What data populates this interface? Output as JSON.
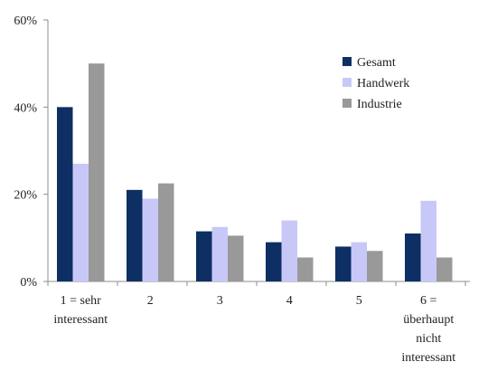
{
  "chart_data": {
    "type": "bar",
    "categories": [
      [
        "1 = sehr",
        "interessant"
      ],
      [
        "2"
      ],
      [
        "3"
      ],
      [
        "4"
      ],
      [
        "5"
      ],
      [
        "6 =",
        "überhaupt",
        "nicht",
        "interessant"
      ]
    ],
    "series": [
      {
        "name": "Gesamt",
        "color": "#0d2f63",
        "values": [
          40,
          21,
          11.5,
          9,
          8,
          11
        ]
      },
      {
        "name": "Handwerk",
        "color": "#c8c8f8",
        "values": [
          27,
          19,
          12.5,
          14,
          9,
          18.5
        ]
      },
      {
        "name": "Industrie",
        "color": "#999999",
        "values": [
          50,
          22.5,
          10.5,
          5.5,
          7,
          5.5
        ]
      }
    ],
    "y_ticks": [
      "0%",
      "20%",
      "40%",
      "60%"
    ],
    "y_tick_values": [
      0,
      20,
      40,
      60
    ],
    "ylim": [
      0,
      60
    ],
    "grid": false,
    "legend_position": "top-right"
  }
}
